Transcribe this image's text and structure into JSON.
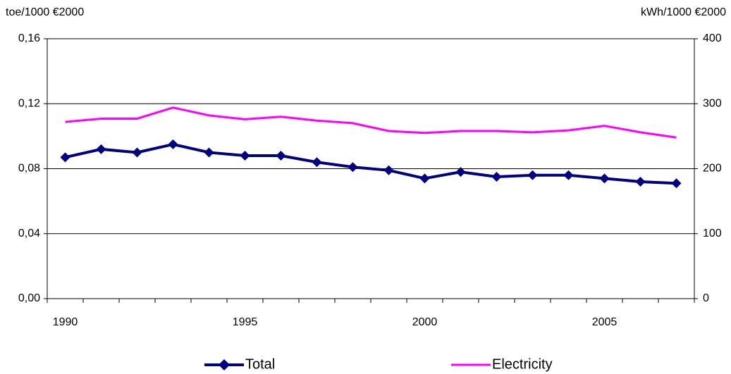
{
  "chart_data": {
    "type": "line",
    "y_label": "toe/1000 €2000",
    "y2_label": "kWh/1000 €2000",
    "x": [
      1990,
      1991,
      1992,
      1993,
      1994,
      1995,
      1996,
      1997,
      1998,
      1999,
      2000,
      2001,
      2002,
      2003,
      2004,
      2005,
      2006,
      2007
    ],
    "xlim": [
      1989.5,
      2007.5
    ],
    "xticks": [
      1990,
      1995,
      2000,
      2005
    ],
    "ylim": [
      0,
      0.16
    ],
    "yticks": [
      {
        "value": 0,
        "label": "0,00"
      },
      {
        "value": 0.04,
        "label": "0,04"
      },
      {
        "value": 0.08,
        "label": "0,08"
      },
      {
        "value": 0.12,
        "label": "0,12"
      },
      {
        "value": 0.16,
        "label": "0,16"
      }
    ],
    "y2lim": [
      0,
      400
    ],
    "y2ticks": [
      0,
      100,
      200,
      300,
      400
    ],
    "grid": true,
    "legend": "bottom",
    "series": [
      {
        "name": "Total",
        "color": "#000080",
        "marker": "diamond",
        "values": [
          0.087,
          0.092,
          0.09,
          0.095,
          0.09,
          0.088,
          0.088,
          0.084,
          0.081,
          0.079,
          0.074,
          0.078,
          0.075,
          0.076,
          0.076,
          0.074,
          0.072,
          0.071
        ]
      },
      {
        "name": "Electricity",
        "color": "#ff00ff",
        "axis": "y2",
        "values": [
          272,
          277,
          277,
          294,
          282,
          276,
          280,
          274,
          270,
          258,
          255,
          258,
          258,
          256,
          259,
          266,
          256,
          248
        ]
      }
    ]
  }
}
